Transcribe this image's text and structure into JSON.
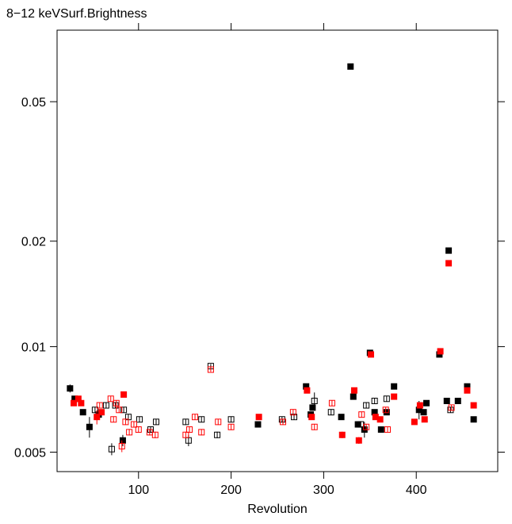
{
  "chart_data": {
    "type": "scatter",
    "title": "8−12 keVSurf.Brightness",
    "xlabel": "Revolution",
    "ylabel": "",
    "x_scale": "linear",
    "y_scale": "log",
    "xlim": [
      12,
      488
    ],
    "ylim": [
      0.0044,
      0.08
    ],
    "x_ticks": [
      100,
      200,
      300,
      400
    ],
    "x_tick_labels": [
      "100",
      "200",
      "300",
      "400"
    ],
    "y_ticks": [
      0.005,
      0.01,
      0.02,
      0.05
    ],
    "y_tick_labels": [
      "0.005",
      "0.01",
      "0.02",
      "0.05"
    ],
    "grid": false,
    "colors": {
      "black": "#000000",
      "red": "#ff0000"
    },
    "series": [
      {
        "color": "black",
        "marker": "filled-square",
        "points": [
          {
            "x": 26,
            "y": 0.0076,
            "err": 0.0002
          },
          {
            "x": 31,
            "y": 0.0071
          },
          {
            "x": 40,
            "y": 0.0065
          },
          {
            "x": 47,
            "y": 0.0059,
            "err": 0.0004
          },
          {
            "x": 57,
            "y": 0.0064
          },
          {
            "x": 83,
            "y": 0.0054,
            "err": 0.0002
          },
          {
            "x": 229,
            "y": 0.006
          },
          {
            "x": 281,
            "y": 0.0077
          },
          {
            "x": 286,
            "y": 0.0064
          },
          {
            "x": 288,
            "y": 0.0067
          },
          {
            "x": 319,
            "y": 0.0063
          },
          {
            "x": 329,
            "y": 0.063
          },
          {
            "x": 332,
            "y": 0.0072
          },
          {
            "x": 337,
            "y": 0.006
          },
          {
            "x": 344,
            "y": 0.0058,
            "err": 0.0003
          },
          {
            "x": 350,
            "y": 0.0096
          },
          {
            "x": 355,
            "y": 0.0065
          },
          {
            "x": 362,
            "y": 0.0058
          },
          {
            "x": 368,
            "y": 0.0065
          },
          {
            "x": 376,
            "y": 0.0077
          },
          {
            "x": 403,
            "y": 0.0066,
            "err": 0.0004
          },
          {
            "x": 408,
            "y": 0.0065
          },
          {
            "x": 411,
            "y": 0.0069
          },
          {
            "x": 425,
            "y": 0.0095
          },
          {
            "x": 433,
            "y": 0.007
          },
          {
            "x": 435,
            "y": 0.0188
          },
          {
            "x": 445,
            "y": 0.007
          },
          {
            "x": 455,
            "y": 0.0077
          },
          {
            "x": 462,
            "y": 0.0062
          }
        ]
      },
      {
        "color": "black",
        "marker": "open-square",
        "points": [
          {
            "x": 53,
            "y": 0.0066
          },
          {
            "x": 65,
            "y": 0.0068
          },
          {
            "x": 71,
            "y": 0.0051,
            "err": 0.0002
          },
          {
            "x": 75,
            "y": 0.0068
          },
          {
            "x": 84,
            "y": 0.0066
          },
          {
            "x": 89,
            "y": 0.0063
          },
          {
            "x": 101,
            "y": 0.0062
          },
          {
            "x": 113,
            "y": 0.0058
          },
          {
            "x": 119,
            "y": 0.0061
          },
          {
            "x": 151,
            "y": 0.0061
          },
          {
            "x": 154,
            "y": 0.0054,
            "err": 0.0002
          },
          {
            "x": 168,
            "y": 0.0062
          },
          {
            "x": 178,
            "y": 0.0088
          },
          {
            "x": 185,
            "y": 0.0056
          },
          {
            "x": 200,
            "y": 0.0062
          },
          {
            "x": 255,
            "y": 0.0062
          },
          {
            "x": 268,
            "y": 0.0063
          },
          {
            "x": 290,
            "y": 0.007,
            "err": 0.0004
          },
          {
            "x": 308,
            "y": 0.0065
          },
          {
            "x": 340,
            "y": 0.006
          },
          {
            "x": 346,
            "y": 0.0068
          },
          {
            "x": 355,
            "y": 0.007
          },
          {
            "x": 368,
            "y": 0.0071
          },
          {
            "x": 437,
            "y": 0.0066
          }
        ]
      },
      {
        "color": "red",
        "marker": "filled-square",
        "points": [
          {
            "x": 30,
            "y": 0.0069
          },
          {
            "x": 35,
            "y": 0.0071
          },
          {
            "x": 38,
            "y": 0.0069
          },
          {
            "x": 55,
            "y": 0.0063,
            "err": 0.0003
          },
          {
            "x": 60,
            "y": 0.0065
          },
          {
            "x": 84,
            "y": 0.0073
          },
          {
            "x": 230,
            "y": 0.0063
          },
          {
            "x": 282,
            "y": 0.0075
          },
          {
            "x": 287,
            "y": 0.0063
          },
          {
            "x": 320,
            "y": 0.0056
          },
          {
            "x": 333,
            "y": 0.0075
          },
          {
            "x": 338,
            "y": 0.0054
          },
          {
            "x": 351,
            "y": 0.0095
          },
          {
            "x": 356,
            "y": 0.0063
          },
          {
            "x": 361,
            "y": 0.0062
          },
          {
            "x": 376,
            "y": 0.0072
          },
          {
            "x": 398,
            "y": 0.0061
          },
          {
            "x": 404,
            "y": 0.0068
          },
          {
            "x": 409,
            "y": 0.0062
          },
          {
            "x": 426,
            "y": 0.0097
          },
          {
            "x": 435,
            "y": 0.0173
          },
          {
            "x": 455,
            "y": 0.0075
          },
          {
            "x": 462,
            "y": 0.0068
          }
        ]
      },
      {
        "color": "red",
        "marker": "open-square",
        "points": [
          {
            "x": 58,
            "y": 0.0068
          },
          {
            "x": 70,
            "y": 0.0071
          },
          {
            "x": 73,
            "y": 0.0062
          },
          {
            "x": 76,
            "y": 0.0069
          },
          {
            "x": 79,
            "y": 0.0066
          },
          {
            "x": 82,
            "y": 0.0052,
            "err": 0.0002
          },
          {
            "x": 86,
            "y": 0.0061
          },
          {
            "x": 90,
            "y": 0.0057
          },
          {
            "x": 95,
            "y": 0.006
          },
          {
            "x": 100,
            "y": 0.0058
          },
          {
            "x": 112,
            "y": 0.0057
          },
          {
            "x": 118,
            "y": 0.0056
          },
          {
            "x": 151,
            "y": 0.0056
          },
          {
            "x": 155,
            "y": 0.0058
          },
          {
            "x": 161,
            "y": 0.0063
          },
          {
            "x": 168,
            "y": 0.0057
          },
          {
            "x": 178,
            "y": 0.0086
          },
          {
            "x": 186,
            "y": 0.0061
          },
          {
            "x": 200,
            "y": 0.0059
          },
          {
            "x": 256,
            "y": 0.0061
          },
          {
            "x": 267,
            "y": 0.0065
          },
          {
            "x": 290,
            "y": 0.0059
          },
          {
            "x": 309,
            "y": 0.0069
          },
          {
            "x": 341,
            "y": 0.0064
          },
          {
            "x": 346,
            "y": 0.0059
          },
          {
            "x": 367,
            "y": 0.0066
          },
          {
            "x": 369,
            "y": 0.0058
          },
          {
            "x": 438,
            "y": 0.0067
          }
        ]
      }
    ]
  }
}
